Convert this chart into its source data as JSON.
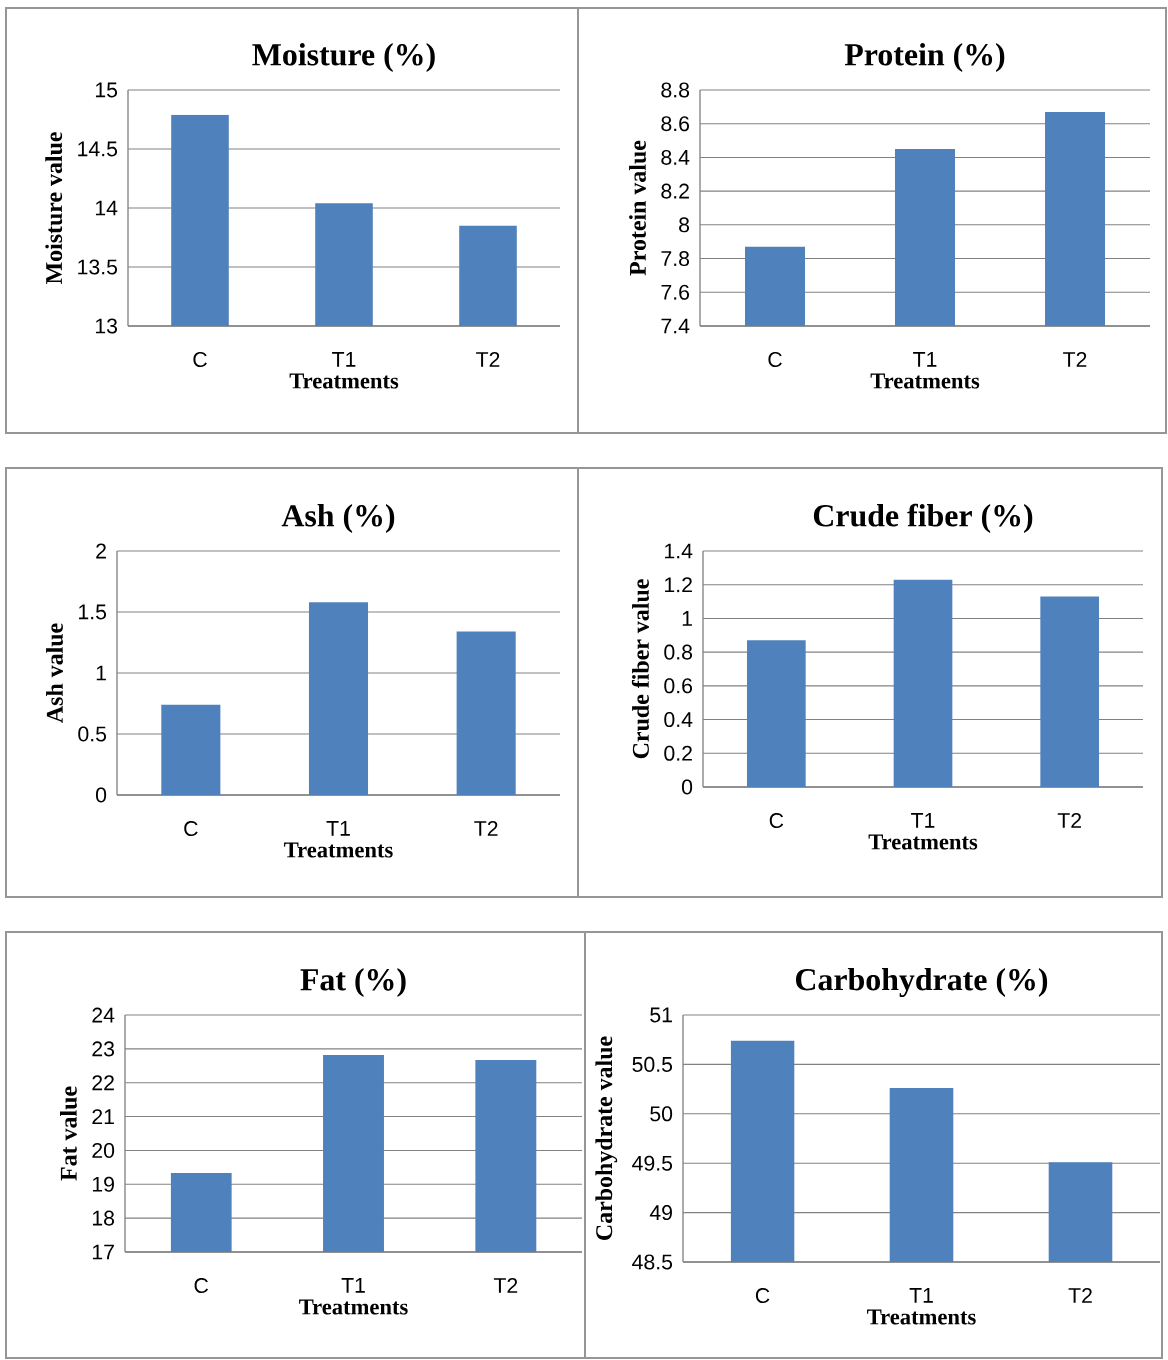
{
  "chart_data": [
    {
      "type": "bar",
      "title": "Moisture (%)",
      "xlabel": "Treatments",
      "ylabel": "Moisture value",
      "categories": [
        "C",
        "T1",
        "T2"
      ],
      "values": [
        14.79,
        14.04,
        13.85
      ],
      "color": "#4f81bd",
      "ylim": [
        13,
        15
      ],
      "yticks": [
        13,
        13.5,
        14,
        14.5,
        15
      ],
      "grid": "y"
    },
    {
      "type": "bar",
      "title": "Protein (%)",
      "xlabel": "Treatments",
      "ylabel": "Protein value",
      "categories": [
        "C",
        "T1",
        "T2"
      ],
      "values": [
        7.87,
        8.45,
        8.67
      ],
      "color": "#4f81bd",
      "ylim": [
        7.4,
        8.8
      ],
      "yticks": [
        7.4,
        7.6,
        7.8,
        8,
        8.2,
        8.4,
        8.6,
        8.8
      ],
      "grid": "y"
    },
    {
      "type": "bar",
      "title": "Ash (%)",
      "xlabel": "Treatments",
      "ylabel": "Ash value",
      "categories": [
        "C",
        "T1",
        "T2"
      ],
      "values": [
        0.74,
        1.58,
        1.34
      ],
      "color": "#4f81bd",
      "ylim": [
        0,
        2
      ],
      "yticks": [
        0,
        0.5,
        1,
        1.5,
        2
      ],
      "grid": "y"
    },
    {
      "type": "bar",
      "title": "Crude fiber (%)",
      "xlabel": "Treatments",
      "ylabel": "Crude fiber value",
      "categories": [
        "C",
        "T1",
        "T2"
      ],
      "values": [
        0.87,
        1.23,
        1.13
      ],
      "color": "#4f81bd",
      "ylim": [
        0,
        1.4
      ],
      "yticks": [
        0,
        0.2,
        0.4,
        0.6,
        0.8,
        1,
        1.2,
        1.4
      ],
      "grid": "y"
    },
    {
      "type": "bar",
      "title": "Fat (%)",
      "xlabel": "Treatments",
      "ylabel": "Fat value",
      "categories": [
        "C",
        "T1",
        "T2"
      ],
      "values": [
        19.33,
        22.82,
        22.67
      ],
      "color": "#4f81bd",
      "ylim": [
        17,
        24
      ],
      "yticks": [
        17,
        18,
        19,
        20,
        21,
        22,
        23,
        24
      ],
      "grid": "y"
    },
    {
      "type": "bar",
      "title": "Carbohydrate (%)",
      "xlabel": "Treatments",
      "ylabel": "Carbohydrate value",
      "categories": [
        "C",
        "T1",
        "T2"
      ],
      "values": [
        50.74,
        50.26,
        49.51
      ],
      "color": "#4f81bd",
      "ylim": [
        48.5,
        51
      ],
      "yticks": [
        48.5,
        49,
        49.5,
        50,
        50.5,
        51
      ],
      "grid": "y"
    }
  ]
}
